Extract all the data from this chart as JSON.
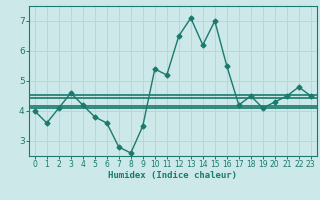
{
  "x": [
    0,
    1,
    2,
    3,
    4,
    5,
    6,
    7,
    8,
    9,
    10,
    11,
    12,
    13,
    14,
    15,
    16,
    17,
    18,
    19,
    20,
    21,
    22,
    23
  ],
  "y": [
    4.0,
    3.6,
    4.1,
    4.6,
    4.2,
    3.8,
    3.6,
    2.8,
    2.6,
    3.5,
    5.4,
    5.2,
    6.5,
    7.1,
    6.2,
    7.0,
    5.5,
    4.2,
    4.5,
    4.1,
    4.3,
    4.5,
    4.8,
    4.5
  ],
  "line_color": "#1a7a6e",
  "bg_color": "#cce8e8",
  "grid_color": "#b8d8d8",
  "xlabel": "Humidex (Indice chaleur)",
  "xlim": [
    -0.5,
    23.5
  ],
  "ylim": [
    2.5,
    7.5
  ],
  "yticks": [
    3,
    4,
    5,
    6,
    7
  ],
  "xticks": [
    0,
    1,
    2,
    3,
    4,
    5,
    6,
    7,
    8,
    9,
    10,
    11,
    12,
    13,
    14,
    15,
    16,
    17,
    18,
    19,
    20,
    21,
    22,
    23
  ],
  "hline1_y": 4.1,
  "hline2_y": 4.18,
  "hline3_y": 4.44,
  "hline4_y": 4.52,
  "hline_color": "#1a7a6e",
  "marker": "D",
  "markersize": 2.5,
  "linewidth": 1.0
}
